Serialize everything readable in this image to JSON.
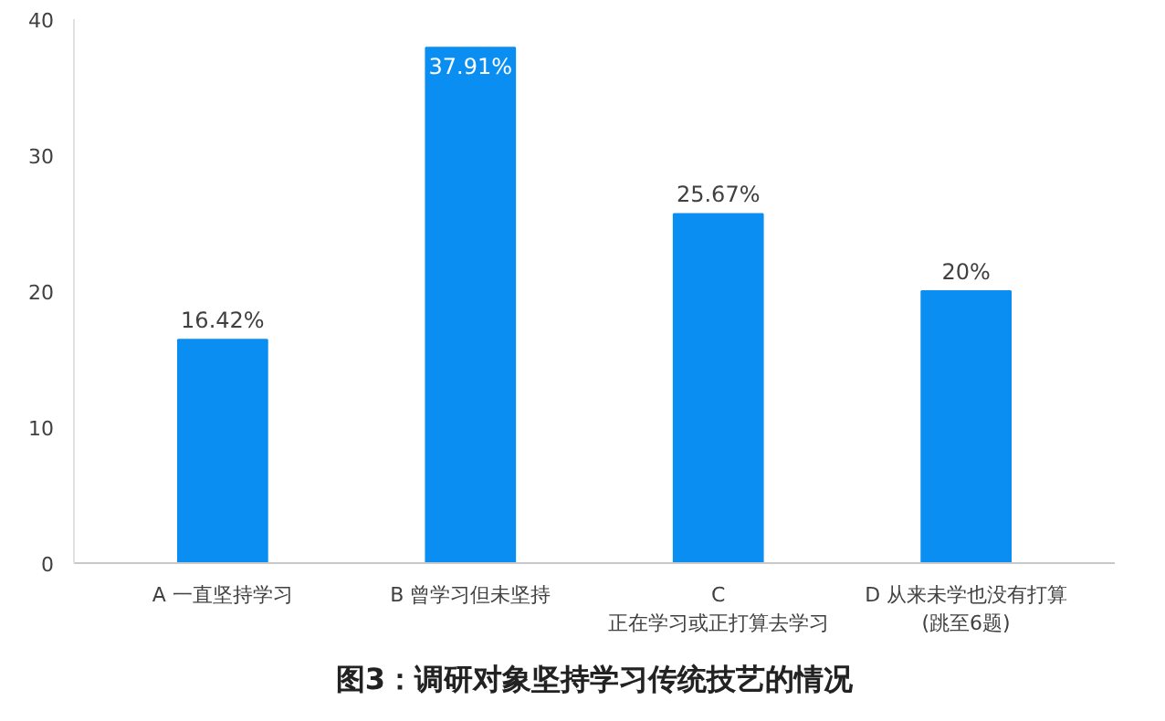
{
  "chart_data": {
    "type": "bar",
    "title": "图3：调研对象坚持学习传统技艺的情况",
    "categories": [
      "A 一直坚持学习",
      "B 曾学习但未坚持",
      "C\n正在学习或正打算去学习",
      "D 从来未学也没有打算\n(跳至6题)"
    ],
    "values": [
      16.42,
      37.91,
      25.67,
      20
    ],
    "value_labels": [
      "16.42%",
      "37.91%",
      "25.67%",
      "20%"
    ],
    "color": "#0a8ef2",
    "ylim": [
      0,
      40
    ],
    "yticks": [
      0,
      10,
      20,
      30,
      40
    ],
    "grid": false
  }
}
